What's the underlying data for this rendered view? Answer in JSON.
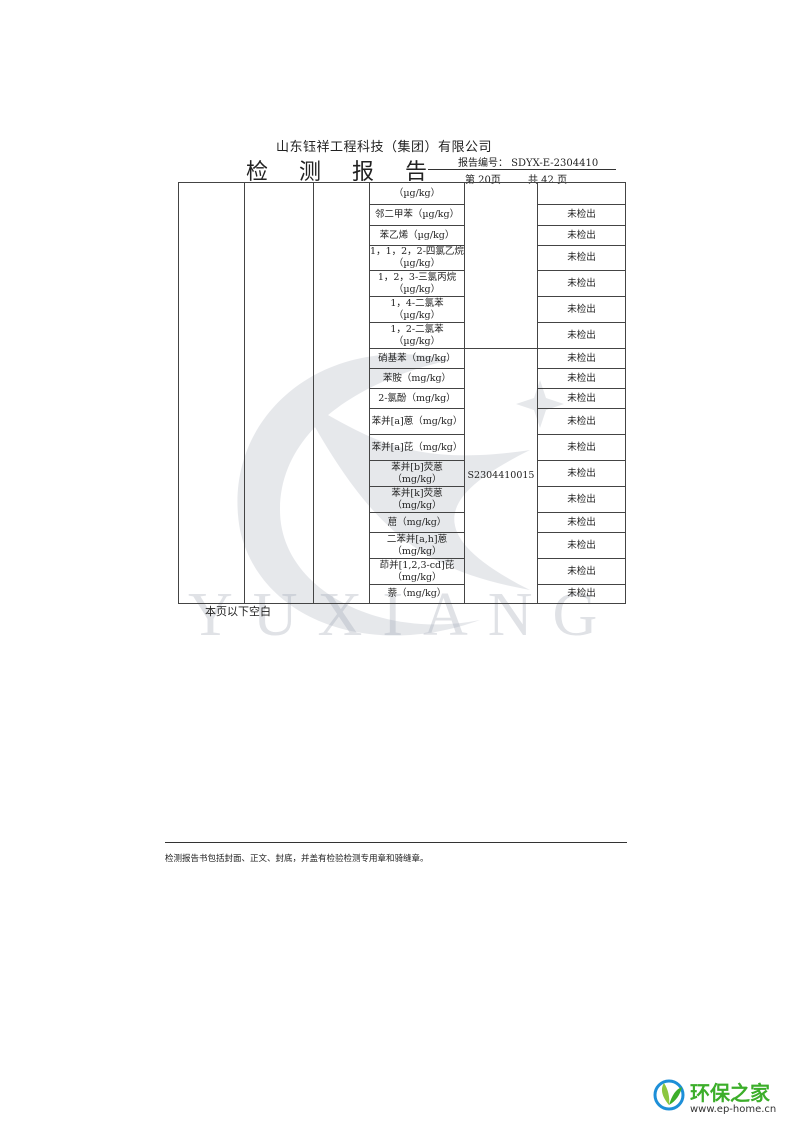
{
  "header": {
    "company": "山东钰祥工程科技（集团）有限公司",
    "title": "检 测 报 告",
    "report_number": "报告编号：  SDYX-E-2304410",
    "page": "第 20页",
    "total_pages": "共 42 页"
  },
  "watermark_text": "YUXIANG",
  "table": {
    "rows": [
      {
        "item": "（µg/kg）",
        "result": ""
      },
      {
        "item": "邻二甲苯（µg/kg）",
        "result": "未检出"
      },
      {
        "item": "苯乙烯（µg/kg）",
        "result": "未检出"
      },
      {
        "item": "1，1，2，2-四氯乙烷（µg/kg）",
        "result": "未检出"
      },
      {
        "item": "1，2，3-三氯丙烷（µg/kg）",
        "result": "未检出"
      },
      {
        "item": "1，4-二氯苯（µg/kg）",
        "result": "未检出"
      },
      {
        "item": "1，2-二氯苯（µg/kg）",
        "result": "未检出"
      },
      {
        "item": "硝基苯（mg/kg）",
        "result": "未检出"
      },
      {
        "item": "苯胺（mg/kg）",
        "result": "未检出"
      },
      {
        "item": "2-氯酚（mg/kg）",
        "result": "未检出"
      },
      {
        "item": "苯并[a]蒽（mg/kg）",
        "result": "未检出"
      },
      {
        "item": "苯并[a]芘（mg/kg）",
        "result": "未检出"
      },
      {
        "item": "苯并[b]荧蒽（mg/kg）",
        "result": "未检出"
      },
      {
        "item": "苯并[k]荧蒽（mg/kg）",
        "result": "未检出"
      },
      {
        "item": "䓛（mg/kg）",
        "result": "未检出"
      },
      {
        "item": "二苯并[a,h]蒽（mg/kg）",
        "result": "未检出"
      },
      {
        "item": "茚并[1,2,3-cd]芘（mg/kg）",
        "result": "未检出"
      },
      {
        "item": "萘（mg/kg）",
        "result": "未检出"
      }
    ],
    "sample_id_upper": "",
    "sample_id": "S2304410015"
  },
  "blank_note": "本页以下空白",
  "footer_note": "检测报告书包括封面、正文、封底，并盖有检验检测专用章和骑缝章。",
  "site_logo": {
    "name": "环保之家",
    "url": "www.ep-home.cn",
    "color": "#3cae2a"
  }
}
